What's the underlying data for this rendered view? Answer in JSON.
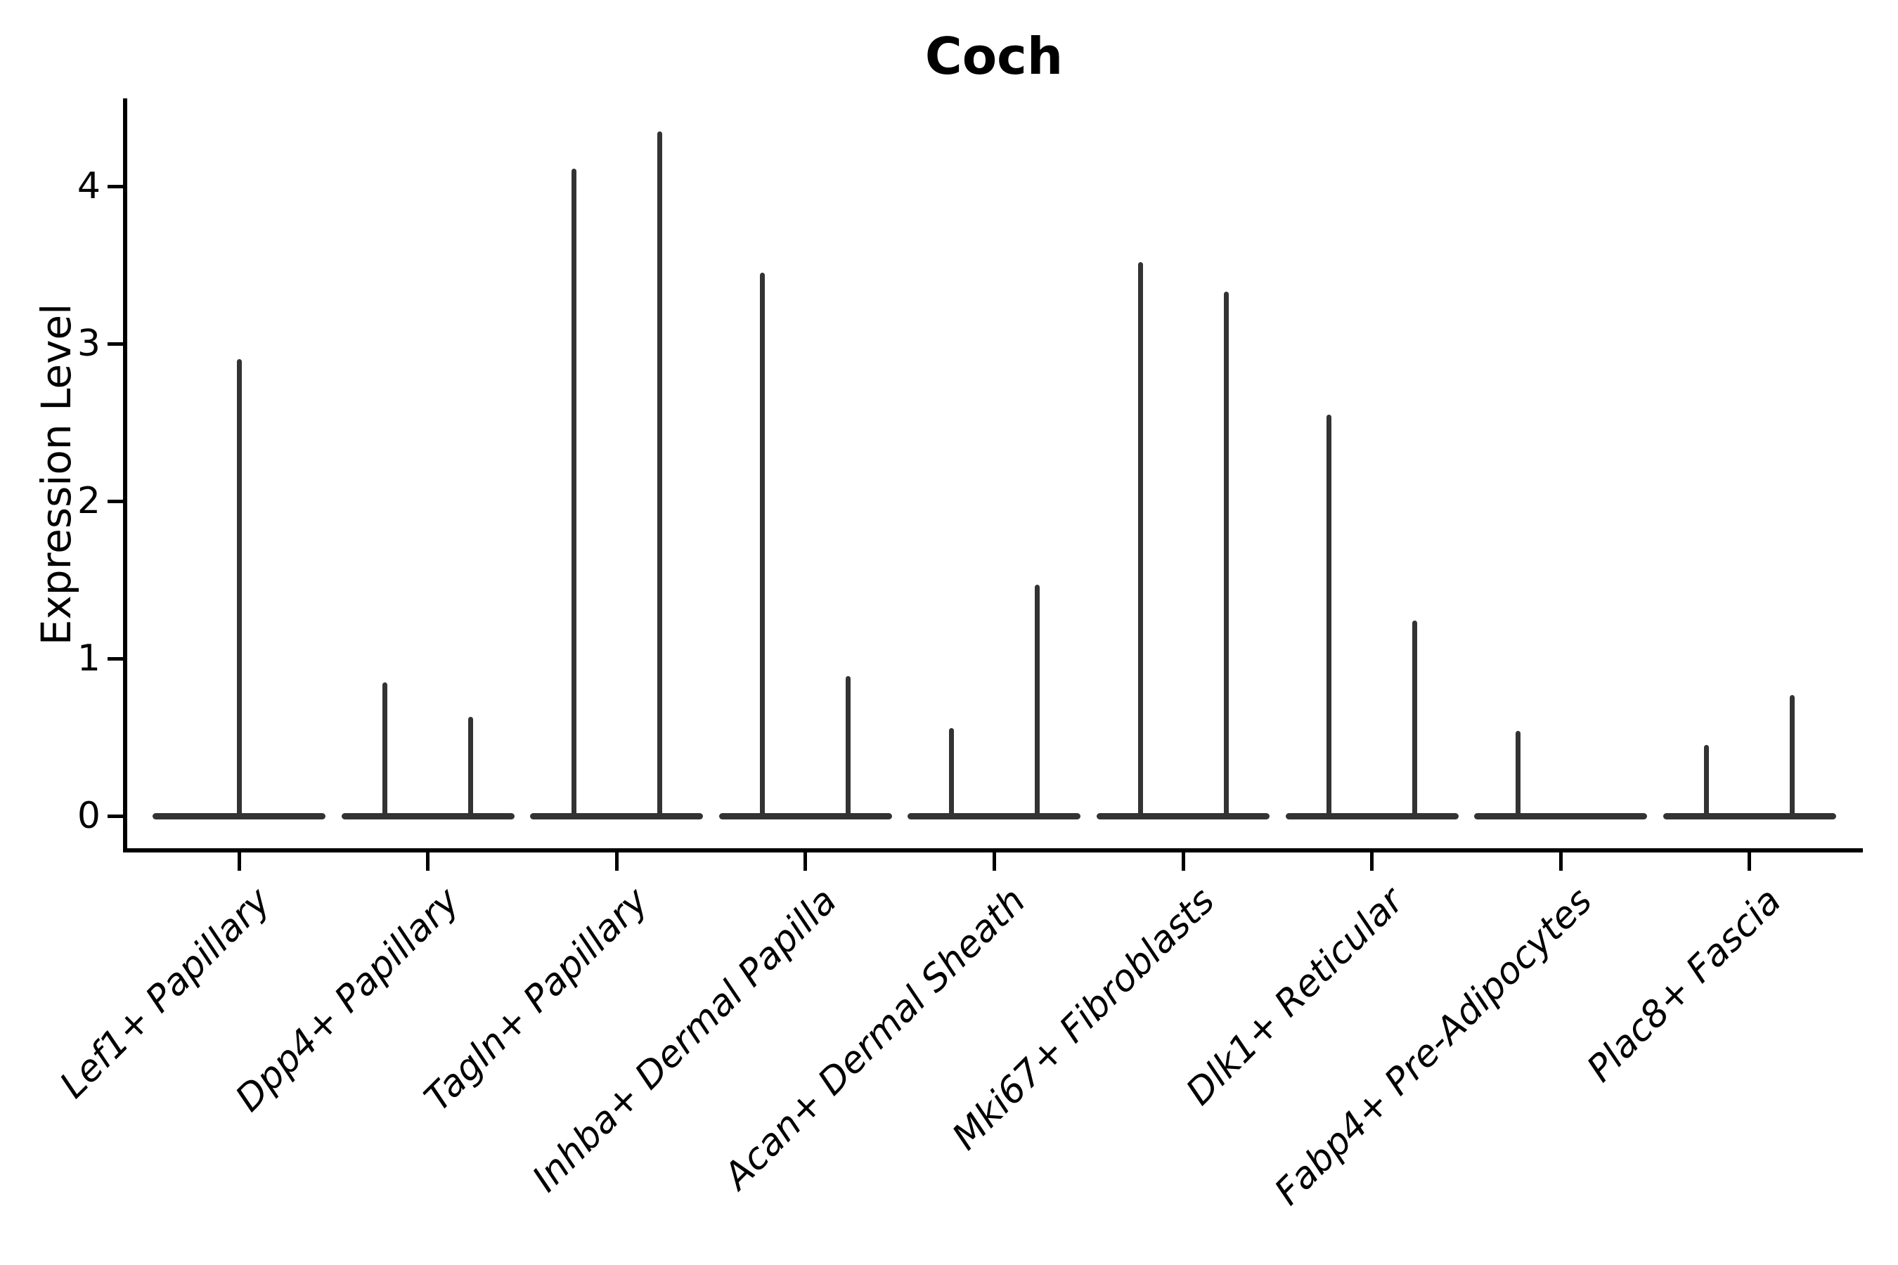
{
  "title": "Coch",
  "axes": {
    "ylabel": "Expression Level",
    "y_tick_labels": [
      "0",
      "1",
      "2",
      "3",
      "4"
    ]
  },
  "colors": {
    "violin": "#333333",
    "axis": "#000000",
    "text": "#000000",
    "background": "#ffffff"
  },
  "chart_data": {
    "type": "violin",
    "title": "Coch",
    "xlabel": "",
    "ylabel": "Expression Level",
    "y_ticks": [
      0,
      1,
      2,
      3,
      4
    ],
    "ylim": [
      -0.22,
      4.57
    ],
    "grid": false,
    "legend": false,
    "x_tick_rotation": 45,
    "description": "Violin plot of Coch expression; most density is a flat body at 0 with a thin spike up to the max expression. Each category holds two side-by-side violins (left/right); 'full' means a single violin spanning the whole slot.",
    "categories": [
      "Lef1+ Papillary",
      "Dpp4+ Papillary",
      "Tagln+ Papillary",
      "Inhba+ Dermal Papilla",
      "Acan+ Dermal Sheath",
      "Mki67+ Fibroblasts",
      "Dlk1+ Reticular",
      "Fabp4+ Pre-Adipocytes",
      "Plac8+ Fascia"
    ],
    "violins": [
      {
        "category": "Lef1+ Papillary",
        "position": "full",
        "max_expression": 2.9
      },
      {
        "category": "Dpp4+ Papillary",
        "position": "left",
        "max_expression": 0.85
      },
      {
        "category": "Dpp4+ Papillary",
        "position": "right",
        "max_expression": 0.63
      },
      {
        "category": "Tagln+ Papillary",
        "position": "left",
        "max_expression": 4.11
      },
      {
        "category": "Tagln+ Papillary",
        "position": "right",
        "max_expression": 4.35
      },
      {
        "category": "Inhba+ Dermal Papilla",
        "position": "left",
        "max_expression": 3.45
      },
      {
        "category": "Inhba+ Dermal Papilla",
        "position": "right",
        "max_expression": 0.89
      },
      {
        "category": "Acan+ Dermal Sheath",
        "position": "left",
        "max_expression": 0.56
      },
      {
        "category": "Acan+ Dermal Sheath",
        "position": "right",
        "max_expression": 1.47
      },
      {
        "category": "Mki67+ Fibroblasts",
        "position": "left",
        "max_expression": 3.52
      },
      {
        "category": "Mki67+ Fibroblasts",
        "position": "right",
        "max_expression": 3.33
      },
      {
        "category": "Dlk1+ Reticular",
        "position": "left",
        "max_expression": 2.55
      },
      {
        "category": "Dlk1+ Reticular",
        "position": "right",
        "max_expression": 1.24
      },
      {
        "category": "Fabp4+ Pre-Adipocytes",
        "position": "left",
        "max_expression": 0.54
      },
      {
        "category": "Fabp4+ Pre-Adipocytes",
        "position": "right",
        "max_expression": 0.0
      },
      {
        "category": "Plac8+ Fascia",
        "position": "left",
        "max_expression": 0.45
      },
      {
        "category": "Plac8+ Fascia",
        "position": "right",
        "max_expression": 0.77
      }
    ]
  }
}
